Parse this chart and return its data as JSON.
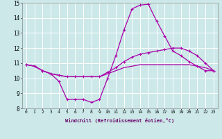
{
  "xlabel": "Windchill (Refroidissement éolien,°C)",
  "x_values": [
    0,
    1,
    2,
    3,
    4,
    5,
    6,
    7,
    8,
    9,
    10,
    11,
    12,
    13,
    14,
    15,
    16,
    17,
    18,
    19,
    20,
    21,
    22,
    23
  ],
  "line1": [
    10.9,
    10.8,
    10.5,
    10.3,
    9.8,
    8.6,
    8.6,
    8.6,
    8.4,
    8.6,
    10.0,
    11.5,
    13.2,
    14.6,
    14.85,
    14.9,
    13.8,
    12.8,
    11.8,
    11.5,
    11.1,
    10.8,
    10.5,
    10.5
  ],
  "line2": [
    10.9,
    10.8,
    10.5,
    10.3,
    10.2,
    10.1,
    10.1,
    10.1,
    10.1,
    10.1,
    10.4,
    10.7,
    11.1,
    11.4,
    11.6,
    11.7,
    11.8,
    11.9,
    12.0,
    12.0,
    11.8,
    11.5,
    11.0,
    10.5
  ],
  "line3": [
    10.9,
    10.8,
    10.5,
    10.3,
    10.2,
    10.1,
    10.1,
    10.1,
    10.1,
    10.1,
    10.3,
    10.5,
    10.7,
    10.8,
    10.9,
    10.9,
    10.9,
    10.9,
    10.9,
    10.9,
    10.9,
    10.8,
    10.7,
    10.5
  ],
  "line_color": "#aa00aa",
  "bg_color": "#cce8e8",
  "grid_color": "#b8d8d8",
  "ylim": [
    8,
    15
  ],
  "yticks": [
    8,
    9,
    10,
    11,
    12,
    13,
    14,
    15
  ]
}
